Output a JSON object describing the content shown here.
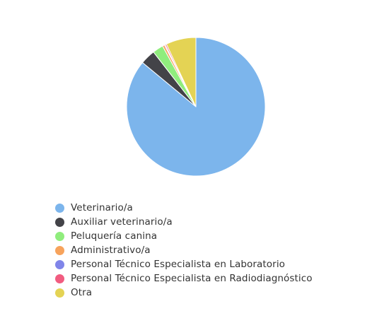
{
  "chart_data": {
    "type": "pie",
    "title": "",
    "categories": [
      "Veterinario/a",
      "Auxiliar veterinario/a",
      "Peluquería canina",
      "Administrativo/a",
      "Personal Técnico Especialista en Laboratorio",
      "Personal Técnico Especialista en Radiodiagnóstico",
      "Otra"
    ],
    "values": [
      86.0,
      3.5,
      2.5,
      0.5,
      0.2,
      0.3,
      7.0
    ],
    "colors": [
      "#7cb5ec",
      "#434348",
      "#90ed7d",
      "#f7a35c",
      "#8085e9",
      "#f15c80",
      "#e4d354"
    ],
    "legend_position": "bottom-left",
    "start_angle_deg": 0,
    "direction": "clockwise"
  }
}
